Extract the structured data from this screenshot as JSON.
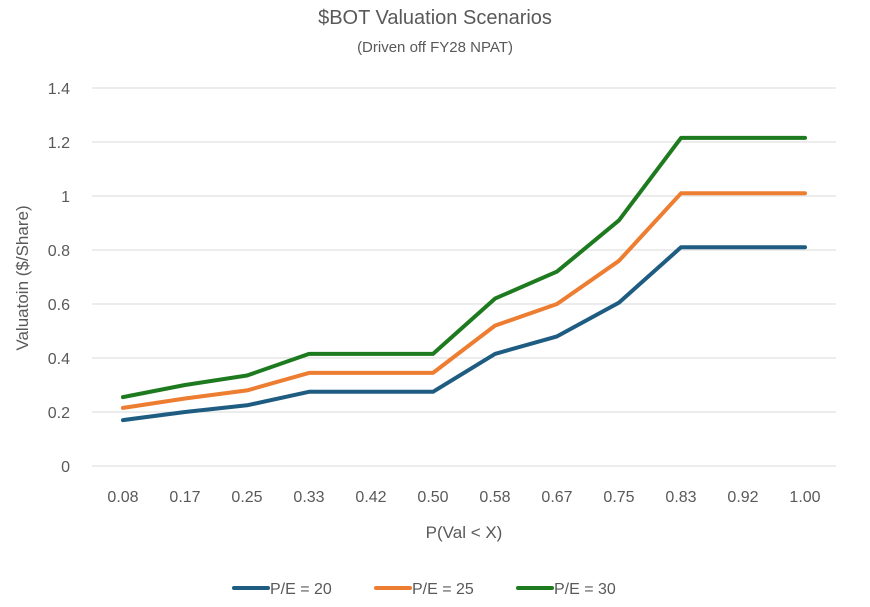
{
  "chart_data": {
    "type": "line",
    "title": "$BOT Valuation Scenarios",
    "subtitle": "(Driven off FY28 NPAT)",
    "xlabel": "P(Val < X)",
    "ylabel": "Valuatoin ($/Share)",
    "categories": [
      "0.08",
      "0.17",
      "0.25",
      "0.33",
      "0.42",
      "0.50",
      "0.58",
      "0.67",
      "0.75",
      "0.83",
      "0.92",
      "1.00"
    ],
    "ylim": [
      0,
      1.4
    ],
    "yticks": [
      "0",
      "0.2",
      "0.4",
      "0.6",
      "0.8",
      "1",
      "1.2",
      "1.4"
    ],
    "grid": true,
    "legend_position": "bottom",
    "series": [
      {
        "name": "P/E = 20",
        "color": "#1f5c82",
        "values": [
          0.17,
          0.2,
          0.225,
          0.275,
          0.275,
          0.275,
          0.415,
          0.48,
          0.605,
          0.81,
          0.81,
          0.81
        ]
      },
      {
        "name": "P/E = 25",
        "color": "#ed7d31",
        "values": [
          0.215,
          0.25,
          0.28,
          0.345,
          0.345,
          0.345,
          0.52,
          0.6,
          0.76,
          1.01,
          1.01,
          1.01
        ]
      },
      {
        "name": "P/E = 30",
        "color": "#1e7a1e",
        "values": [
          0.255,
          0.3,
          0.335,
          0.415,
          0.415,
          0.415,
          0.62,
          0.72,
          0.91,
          1.215,
          1.215,
          1.215
        ]
      }
    ]
  }
}
